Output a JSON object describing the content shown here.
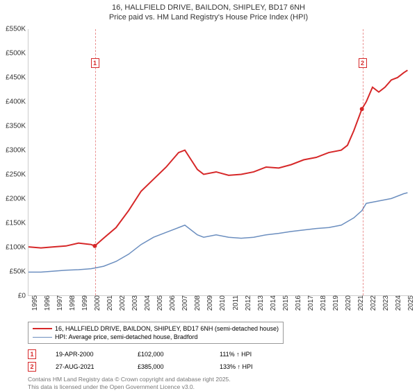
{
  "title": {
    "line1": "16, HALLFIELD DRIVE, BAILDON, SHIPLEY, BD17 6NH",
    "line2": "Price paid vs. HM Land Registry's House Price Index (HPI)"
  },
  "chart": {
    "type": "line",
    "background_color": "#ffffff",
    "grid_color": "#cccccc",
    "xlim": [
      1995,
      2025.5
    ],
    "ylim": [
      0,
      550000
    ],
    "ytick_step": 50000,
    "ytick_labels": [
      "£0",
      "£50K",
      "£100K",
      "£150K",
      "£200K",
      "£250K",
      "£300K",
      "£350K",
      "£400K",
      "£450K",
      "£500K",
      "£550K"
    ],
    "xtick_step": 1,
    "xtick_labels": [
      "1995",
      "1996",
      "1997",
      "1998",
      "1999",
      "2000",
      "2001",
      "2002",
      "2003",
      "2004",
      "2005",
      "2006",
      "2007",
      "2008",
      "2009",
      "2010",
      "2011",
      "2012",
      "2013",
      "2014",
      "2015",
      "2016",
      "2017",
      "2018",
      "2019",
      "2020",
      "2021",
      "2022",
      "2023",
      "2024",
      "2025"
    ],
    "label_fontsize": 10,
    "series": [
      {
        "name": "property",
        "label": "16, HALLFIELD DRIVE, BAILDON, SHIPLEY, BD17 6NH (semi-detached house)",
        "color": "#d62728",
        "line_width": 2,
        "data": [
          [
            1995,
            100000
          ],
          [
            1996,
            98000
          ],
          [
            1997,
            100000
          ],
          [
            1998,
            102000
          ],
          [
            1999,
            108000
          ],
          [
            2000,
            105000
          ],
          [
            2000.3,
            102000
          ],
          [
            2001,
            118000
          ],
          [
            2002,
            140000
          ],
          [
            2003,
            175000
          ],
          [
            2004,
            215000
          ],
          [
            2005,
            240000
          ],
          [
            2006,
            265000
          ],
          [
            2007,
            295000
          ],
          [
            2007.5,
            300000
          ],
          [
            2008,
            280000
          ],
          [
            2008.5,
            260000
          ],
          [
            2009,
            250000
          ],
          [
            2010,
            255000
          ],
          [
            2011,
            248000
          ],
          [
            2012,
            250000
          ],
          [
            2013,
            255000
          ],
          [
            2014,
            265000
          ],
          [
            2015,
            263000
          ],
          [
            2016,
            270000
          ],
          [
            2017,
            280000
          ],
          [
            2018,
            285000
          ],
          [
            2019,
            295000
          ],
          [
            2020,
            300000
          ],
          [
            2020.5,
            310000
          ],
          [
            2021,
            340000
          ],
          [
            2021.65,
            385000
          ],
          [
            2022,
            400000
          ],
          [
            2022.5,
            430000
          ],
          [
            2023,
            420000
          ],
          [
            2023.5,
            430000
          ],
          [
            2024,
            445000
          ],
          [
            2024.5,
            450000
          ],
          [
            2025,
            460000
          ],
          [
            2025.3,
            465000
          ]
        ]
      },
      {
        "name": "hpi",
        "label": "HPI: Average price, semi-detached house, Bradford",
        "color": "#6b8ebf",
        "line_width": 1.5,
        "data": [
          [
            1995,
            48000
          ],
          [
            1996,
            48000
          ],
          [
            1997,
            50000
          ],
          [
            1998,
            52000
          ],
          [
            1999,
            53000
          ],
          [
            2000,
            55000
          ],
          [
            2001,
            60000
          ],
          [
            2002,
            70000
          ],
          [
            2003,
            85000
          ],
          [
            2004,
            105000
          ],
          [
            2005,
            120000
          ],
          [
            2006,
            130000
          ],
          [
            2007,
            140000
          ],
          [
            2007.5,
            145000
          ],
          [
            2008,
            135000
          ],
          [
            2008.5,
            125000
          ],
          [
            2009,
            120000
          ],
          [
            2010,
            125000
          ],
          [
            2011,
            120000
          ],
          [
            2012,
            118000
          ],
          [
            2013,
            120000
          ],
          [
            2014,
            125000
          ],
          [
            2015,
            128000
          ],
          [
            2016,
            132000
          ],
          [
            2017,
            135000
          ],
          [
            2018,
            138000
          ],
          [
            2019,
            140000
          ],
          [
            2020,
            145000
          ],
          [
            2021,
            160000
          ],
          [
            2021.65,
            175000
          ],
          [
            2022,
            190000
          ],
          [
            2023,
            195000
          ],
          [
            2024,
            200000
          ],
          [
            2025,
            210000
          ],
          [
            2025.3,
            212000
          ]
        ]
      }
    ],
    "markers": [
      {
        "n": "1",
        "x": 2000.3,
        "y": 102000,
        "box_y": 480000
      },
      {
        "n": "2",
        "x": 2021.65,
        "y": 385000,
        "box_y": 480000
      }
    ],
    "marker_color": "#d62728"
  },
  "legend": {
    "rows": [
      {
        "color": "#d62728",
        "width": 2,
        "label_path": "chart.series.0.label"
      },
      {
        "color": "#6b8ebf",
        "width": 1.5,
        "label_path": "chart.series.1.label"
      }
    ]
  },
  "sales": [
    {
      "n": "1",
      "date": "19-APR-2000",
      "price": "£102,000",
      "hpi": "111% ↑ HPI"
    },
    {
      "n": "2",
      "date": "27-AUG-2021",
      "price": "£385,000",
      "hpi": "133% ↑ HPI"
    }
  ],
  "credits": {
    "line1": "Contains HM Land Registry data © Crown copyright and database right 2025.",
    "line2": "This data is licensed under the Open Government Licence v3.0."
  }
}
